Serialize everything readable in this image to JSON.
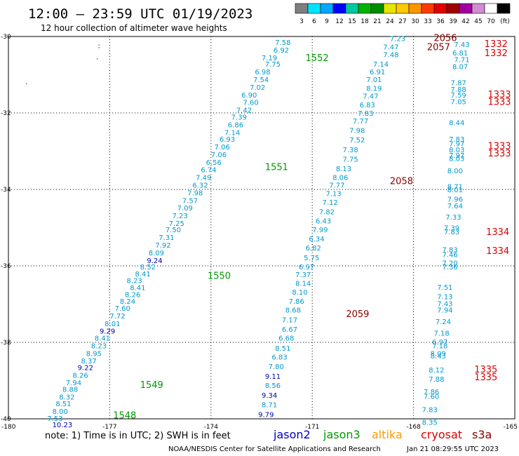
{
  "header": {
    "title": "12:00 – 23:59 UTC 01/19/2023",
    "subtitle": "12 hour collection of altimeter wave heights"
  },
  "color_scale": {
    "labels": [
      "3",
      "6",
      "9",
      "12",
      "15",
      "18",
      "21",
      "24",
      "27",
      "30",
      "33",
      "36",
      "39",
      "42",
      "45",
      "70",
      "(ft)"
    ],
    "colors": [
      "#7f7f7f",
      "#00e5ff",
      "#00a8ff",
      "#0000ff",
      "#00c9a0",
      "#00b400",
      "#008c00",
      "#e6e600",
      "#ffc800",
      "#ff9600",
      "#ff3c00",
      "#e10000",
      "#a00000",
      "#a000a0",
      "#d28cd2",
      "#ffffff",
      "#000000"
    ]
  },
  "legend": {
    "note": "note:  1) Time is in UTC;  2) SWH is in feet",
    "satellites": [
      {
        "name": "jason2",
        "color": "#0000cc"
      },
      {
        "name": "jason3",
        "color": "#009900"
      },
      {
        "name": "altika",
        "color": "#ff9900"
      },
      {
        "name": "cryosat",
        "color": "#dd0000"
      },
      {
        "name": "s3a",
        "color": "#880000"
      }
    ]
  },
  "footer": {
    "center": "NOAA/NESDIS Center for Satellite Applications and Research",
    "right": "Jan 21 08:29:55 UTC 2023"
  },
  "chart_data": {
    "type": "scatter",
    "title": "12:00 – 23:59 UTC 01/19/2023",
    "subtitle": "12 hour collection of altimeter wave heights",
    "xlim": [
      -180,
      -165
    ],
    "ylim": [
      -40,
      -30
    ],
    "x_ticks": [
      "-180",
      "-177",
      "-174",
      "-171",
      "-168",
      "-165"
    ],
    "y_ticks": [
      "-30",
      "-32",
      "-34",
      "-36",
      "-38",
      "-40"
    ],
    "grid": true,
    "units": "ft",
    "obs_colors": {
      "light": "#0099cc",
      "dark": "#0000aa"
    },
    "series": [
      {
        "name": "jason3",
        "track_labels": [
          {
            "text": "1552",
            "lon": -171.2,
            "lat": -30.55
          },
          {
            "text": "1551",
            "lon": -172.4,
            "lat": -33.4
          },
          {
            "text": "1550",
            "lon": -174.1,
            "lat": -36.25
          },
          {
            "text": "1549",
            "lon": -176.1,
            "lat": -39.1
          },
          {
            "text": "1548",
            "lon": -176.9,
            "lat": -39.9
          }
        ],
        "points": [
          {
            "lon": -172.1,
            "lat": -30.15,
            "swh": "7.58"
          },
          {
            "lon": -172.15,
            "lat": -30.35,
            "swh": "6.92"
          },
          {
            "lon": -172.5,
            "lat": -30.55,
            "swh": "7.19"
          },
          {
            "lon": -172.4,
            "lat": -30.72,
            "swh": "7.75"
          },
          {
            "lon": -172.7,
            "lat": -30.92,
            "swh": "6.98"
          },
          {
            "lon": -172.75,
            "lat": -31.12,
            "swh": "7.54"
          },
          {
            "lon": -172.85,
            "lat": -31.32,
            "swh": "7.02"
          },
          {
            "lon": -173.1,
            "lat": -31.52,
            "swh": "6.90"
          },
          {
            "lon": -173.05,
            "lat": -31.72,
            "swh": "7.60"
          },
          {
            "lon": -173.25,
            "lat": -31.92,
            "swh": "7.42"
          },
          {
            "lon": -173.4,
            "lat": -32.1,
            "swh": "7.39"
          },
          {
            "lon": -173.5,
            "lat": -32.3,
            "swh": "6.86"
          },
          {
            "lon": -173.6,
            "lat": -32.5,
            "swh": "7.14"
          },
          {
            "lon": -173.75,
            "lat": -32.68,
            "swh": "6.93"
          },
          {
            "lon": -173.9,
            "lat": -32.88,
            "swh": "7.06"
          },
          {
            "lon": -174.0,
            "lat": -33.08,
            "swh": "7.06"
          },
          {
            "lon": -174.15,
            "lat": -33.28,
            "swh": "6.56"
          },
          {
            "lon": -174.3,
            "lat": -33.48,
            "swh": "6.74"
          },
          {
            "lon": -174.45,
            "lat": -33.68,
            "swh": "7.49"
          },
          {
            "lon": -174.55,
            "lat": -33.88,
            "swh": "6.32"
          },
          {
            "lon": -174.7,
            "lat": -34.08,
            "swh": "7.98"
          },
          {
            "lon": -174.85,
            "lat": -34.28,
            "swh": "7.57"
          },
          {
            "lon": -175.0,
            "lat": -34.48,
            "swh": "7.09"
          },
          {
            "lon": -175.15,
            "lat": -34.68,
            "swh": "7.23"
          },
          {
            "lon": -175.25,
            "lat": -34.88,
            "swh": "7.25"
          },
          {
            "lon": -175.35,
            "lat": -35.05,
            "swh": "7.50"
          },
          {
            "lon": -175.55,
            "lat": -35.25,
            "swh": "7.31"
          },
          {
            "lon": -175.65,
            "lat": -35.45,
            "swh": "7.92"
          },
          {
            "lon": -175.85,
            "lat": -35.65,
            "swh": "8.09"
          },
          {
            "lon": -175.9,
            "lat": -35.85,
            "swh": "9.24",
            "dark": true
          },
          {
            "lon": -176.1,
            "lat": -36.02,
            "swh": "8.52"
          },
          {
            "lon": -176.25,
            "lat": -36.2,
            "swh": "8.41"
          },
          {
            "lon": -176.5,
            "lat": -36.38,
            "swh": "8.23"
          },
          {
            "lon": -176.4,
            "lat": -36.56,
            "swh": "8.41"
          },
          {
            "lon": -176.55,
            "lat": -36.74,
            "swh": "8.26"
          },
          {
            "lon": -176.7,
            "lat": -36.92,
            "swh": "8.24"
          },
          {
            "lon": -176.85,
            "lat": -37.1,
            "swh": "7.60"
          },
          {
            "lon": -177.0,
            "lat": -37.3,
            "swh": "7.72"
          },
          {
            "lon": -177.15,
            "lat": -37.5,
            "swh": "8.01"
          },
          {
            "lon": -177.3,
            "lat": -37.7,
            "swh": "9.29",
            "dark": true
          },
          {
            "lon": -177.45,
            "lat": -37.88,
            "swh": "8.41"
          },
          {
            "lon": -177.55,
            "lat": -38.08,
            "swh": "8.23"
          },
          {
            "lon": -177.7,
            "lat": -38.28,
            "swh": "8.95"
          },
          {
            "lon": -177.85,
            "lat": -38.48,
            "swh": "8.37"
          },
          {
            "lon": -177.95,
            "lat": -38.65,
            "swh": "9.22",
            "dark": true
          },
          {
            "lon": -178.1,
            "lat": -38.85,
            "swh": "8.26"
          },
          {
            "lon": -178.3,
            "lat": -39.05,
            "swh": "7.94"
          },
          {
            "lon": -178.4,
            "lat": -39.22,
            "swh": "8.88"
          },
          {
            "lon": -178.5,
            "lat": -39.42,
            "swh": "8.32"
          },
          {
            "lon": -178.6,
            "lat": -39.6,
            "swh": "8.51"
          },
          {
            "lon": -178.7,
            "lat": -39.8,
            "swh": "8.00"
          },
          {
            "lon": -178.85,
            "lat": -39.98,
            "swh": "7.53"
          },
          {
            "lon": -178.7,
            "lat": -40.15,
            "swh": "10.23",
            "dark": true
          }
        ]
      },
      {
        "name": "s3a",
        "track_labels": [
          {
            "text": "2056",
            "lon": -167.4,
            "lat": -30.03
          },
          {
            "text": "2057",
            "lon": -167.6,
            "lat": -30.27
          },
          {
            "text": "2058",
            "lon": -168.7,
            "lat": -33.77
          },
          {
            "text": "2059",
            "lon": -170.0,
            "lat": -37.25
          }
        ],
        "points": [
          {
            "lon": -168.7,
            "lat": -30.05,
            "swh": "7.23"
          },
          {
            "lon": -168.9,
            "lat": -30.27,
            "swh": "7.47"
          },
          {
            "lon": -168.9,
            "lat": -30.47,
            "swh": "7.48"
          },
          {
            "lon": -169.2,
            "lat": -30.72,
            "swh": "7.14"
          },
          {
            "lon": -169.3,
            "lat": -30.92,
            "swh": "6.91"
          },
          {
            "lon": -169.4,
            "lat": -31.12,
            "swh": "7.01"
          },
          {
            "lon": -169.4,
            "lat": -31.35,
            "swh": "8.19"
          },
          {
            "lon": -169.5,
            "lat": -31.55,
            "swh": "7.47"
          },
          {
            "lon": -169.6,
            "lat": -31.78,
            "swh": "6.83"
          },
          {
            "lon": -169.65,
            "lat": -32.0,
            "swh": "7.83"
          },
          {
            "lon": -169.8,
            "lat": -32.2,
            "swh": "7.77"
          },
          {
            "lon": -169.9,
            "lat": -32.45,
            "swh": "7.98"
          },
          {
            "lon": -169.9,
            "lat": -32.7,
            "swh": "7.52"
          },
          {
            "lon": -170.1,
            "lat": -32.95,
            "swh": "7.38"
          },
          {
            "lon": -170.1,
            "lat": -33.2,
            "swh": "7.75"
          },
          {
            "lon": -170.3,
            "lat": -33.45,
            "swh": "8.13"
          },
          {
            "lon": -170.4,
            "lat": -33.68,
            "swh": "8.06"
          },
          {
            "lon": -170.5,
            "lat": -33.88,
            "swh": "7.77"
          },
          {
            "lon": -170.6,
            "lat": -34.1,
            "swh": "7.13"
          },
          {
            "lon": -170.7,
            "lat": -34.33,
            "swh": "7.12"
          },
          {
            "lon": -170.8,
            "lat": -34.58,
            "swh": "7.82"
          },
          {
            "lon": -170.9,
            "lat": -34.82,
            "swh": "6.43"
          },
          {
            "lon": -171.0,
            "lat": -35.05,
            "swh": "7.99"
          },
          {
            "lon": -171.1,
            "lat": -35.28,
            "swh": "6.34"
          },
          {
            "lon": -171.2,
            "lat": -35.52,
            "swh": "6.82"
          },
          {
            "lon": -171.25,
            "lat": -35.78,
            "swh": "5.75"
          },
          {
            "lon": -171.4,
            "lat": -36.02,
            "swh": "6.97"
          },
          {
            "lon": -171.5,
            "lat": -36.22,
            "swh": "7.37"
          },
          {
            "lon": -171.5,
            "lat": -36.45,
            "swh": "8.14"
          },
          {
            "lon": -171.6,
            "lat": -36.68,
            "swh": "8.10"
          },
          {
            "lon": -171.7,
            "lat": -36.92,
            "swh": "7.86"
          },
          {
            "lon": -171.8,
            "lat": -37.15,
            "swh": "8.68"
          },
          {
            "lon": -171.9,
            "lat": -37.4,
            "swh": "7.17"
          },
          {
            "lon": -171.9,
            "lat": -37.65,
            "swh": "6.67"
          },
          {
            "lon": -172.0,
            "lat": -37.88,
            "swh": "6.68"
          },
          {
            "lon": -172.1,
            "lat": -38.15,
            "swh": "8.51"
          },
          {
            "lon": -172.2,
            "lat": -38.38,
            "swh": "6.83"
          },
          {
            "lon": -172.3,
            "lat": -38.62,
            "swh": "7.80"
          },
          {
            "lon": -172.4,
            "lat": -38.88,
            "swh": "9.11",
            "dark": true
          },
          {
            "lon": -172.4,
            "lat": -39.12,
            "swh": "8.56"
          },
          {
            "lon": -172.5,
            "lat": -39.38,
            "swh": "9.34",
            "dark": true
          },
          {
            "lon": -172.5,
            "lat": -39.62,
            "swh": "8.71"
          },
          {
            "lon": -172.6,
            "lat": -39.88,
            "swh": "9.79",
            "dark": true
          }
        ]
      },
      {
        "name": "cryosat",
        "track_labels": [
          {
            "text": "1332",
            "lon": -165.9,
            "lat": -30.18
          },
          {
            "text": "1332",
            "lon": -165.9,
            "lat": -30.42
          },
          {
            "text": "1333",
            "lon": -165.8,
            "lat": -31.5
          },
          {
            "text": "1333",
            "lon": -165.8,
            "lat": -31.7
          },
          {
            "text": "1333",
            "lon": -165.8,
            "lat": -32.85
          },
          {
            "text": "1333",
            "lon": -165.8,
            "lat": -33.05
          },
          {
            "text": "1334",
            "lon": -165.85,
            "lat": -35.1
          },
          {
            "text": "1334",
            "lon": -165.85,
            "lat": -35.6
          },
          {
            "text": "1335",
            "lon": -166.2,
            "lat": -38.7
          },
          {
            "text": "1335",
            "lon": -166.2,
            "lat": -38.9
          }
        ],
        "points": [
          {
            "lon": -166.8,
            "lat": -30.2,
            "swh": "7.43"
          },
          {
            "lon": -166.85,
            "lat": -30.42,
            "swh": "6.81"
          },
          {
            "lon": -166.8,
            "lat": -30.6,
            "swh": "7.71"
          },
          {
            "lon": -166.85,
            "lat": -30.78,
            "swh": "8.07"
          },
          {
            "lon": -166.9,
            "lat": -31.2,
            "swh": "7.87"
          },
          {
            "lon": -166.9,
            "lat": -31.38,
            "swh": "7.88"
          },
          {
            "lon": -166.9,
            "lat": -31.52,
            "swh": "7.59"
          },
          {
            "lon": -166.9,
            "lat": -31.7,
            "swh": "7.05"
          },
          {
            "lon": -166.95,
            "lat": -32.25,
            "swh": "8.44"
          },
          {
            "lon": -166.95,
            "lat": -32.68,
            "swh": "7.83"
          },
          {
            "lon": -166.95,
            "lat": -32.8,
            "swh": "7.97"
          },
          {
            "lon": -166.95,
            "lat": -32.95,
            "swh": "8.03"
          },
          {
            "lon": -166.95,
            "lat": -33.1,
            "swh": "7.97"
          },
          {
            "lon": -166.95,
            "lat": -33.18,
            "swh": "8.03"
          },
          {
            "lon": -167.0,
            "lat": -33.5,
            "swh": "8.00"
          },
          {
            "lon": -167.0,
            "lat": -33.92,
            "swh": "8.71"
          },
          {
            "lon": -167.0,
            "lat": -34.0,
            "swh": "8.01"
          },
          {
            "lon": -167.0,
            "lat": -34.25,
            "swh": "7.96"
          },
          {
            "lon": -167.0,
            "lat": -34.42,
            "swh": "7.64"
          },
          {
            "lon": -167.05,
            "lat": -34.72,
            "swh": "7.33"
          },
          {
            "lon": -167.1,
            "lat": -35.0,
            "swh": "7.39"
          },
          {
            "lon": -167.1,
            "lat": -35.1,
            "swh": "7.83"
          },
          {
            "lon": -167.15,
            "lat": -35.57,
            "swh": "7.83"
          },
          {
            "lon": -167.15,
            "lat": -35.7,
            "swh": "7.46"
          },
          {
            "lon": -167.15,
            "lat": -35.92,
            "swh": "7.20"
          },
          {
            "lon": -167.15,
            "lat": -36.02,
            "swh": "7.36"
          },
          {
            "lon": -167.3,
            "lat": -36.55,
            "swh": "7.51"
          },
          {
            "lon": -167.3,
            "lat": -36.8,
            "swh": "7.13"
          },
          {
            "lon": -167.3,
            "lat": -36.98,
            "swh": "7.43"
          },
          {
            "lon": -167.3,
            "lat": -37.15,
            "swh": "7.94"
          },
          {
            "lon": -167.35,
            "lat": -37.45,
            "swh": "7.24"
          },
          {
            "lon": -167.4,
            "lat": -37.75,
            "swh": "7.18"
          },
          {
            "lon": -167.45,
            "lat": -37.98,
            "swh": "6.97"
          },
          {
            "lon": -167.45,
            "lat": -38.08,
            "swh": "7.18"
          },
          {
            "lon": -167.5,
            "lat": -38.28,
            "swh": "8.09"
          },
          {
            "lon": -167.5,
            "lat": -38.35,
            "swh": "8.43"
          },
          {
            "lon": -167.55,
            "lat": -38.72,
            "swh": "8.12"
          },
          {
            "lon": -167.55,
            "lat": -38.95,
            "swh": "7.88"
          },
          {
            "lon": -167.7,
            "lat": -39.28,
            "swh": "7.86"
          },
          {
            "lon": -167.7,
            "lat": -39.4,
            "swh": "7.60"
          },
          {
            "lon": -167.75,
            "lat": -39.75,
            "swh": "7.83"
          },
          {
            "lon": -167.75,
            "lat": -40.08,
            "swh": "8.35"
          }
        ]
      }
    ],
    "track_label_colors": {
      "jason3": "#009900",
      "s3a": "#880000",
      "cryosat": "#dd0000"
    },
    "stray_marks": [
      {
        "text": ":",
        "lon": -177.35,
        "lat": -30.3
      },
      {
        "text": "·",
        "lon": -177.4,
        "lat": -30.65
      },
      {
        "text": ".",
        "lon": -179.5,
        "lat": -31.25
      }
    ]
  }
}
